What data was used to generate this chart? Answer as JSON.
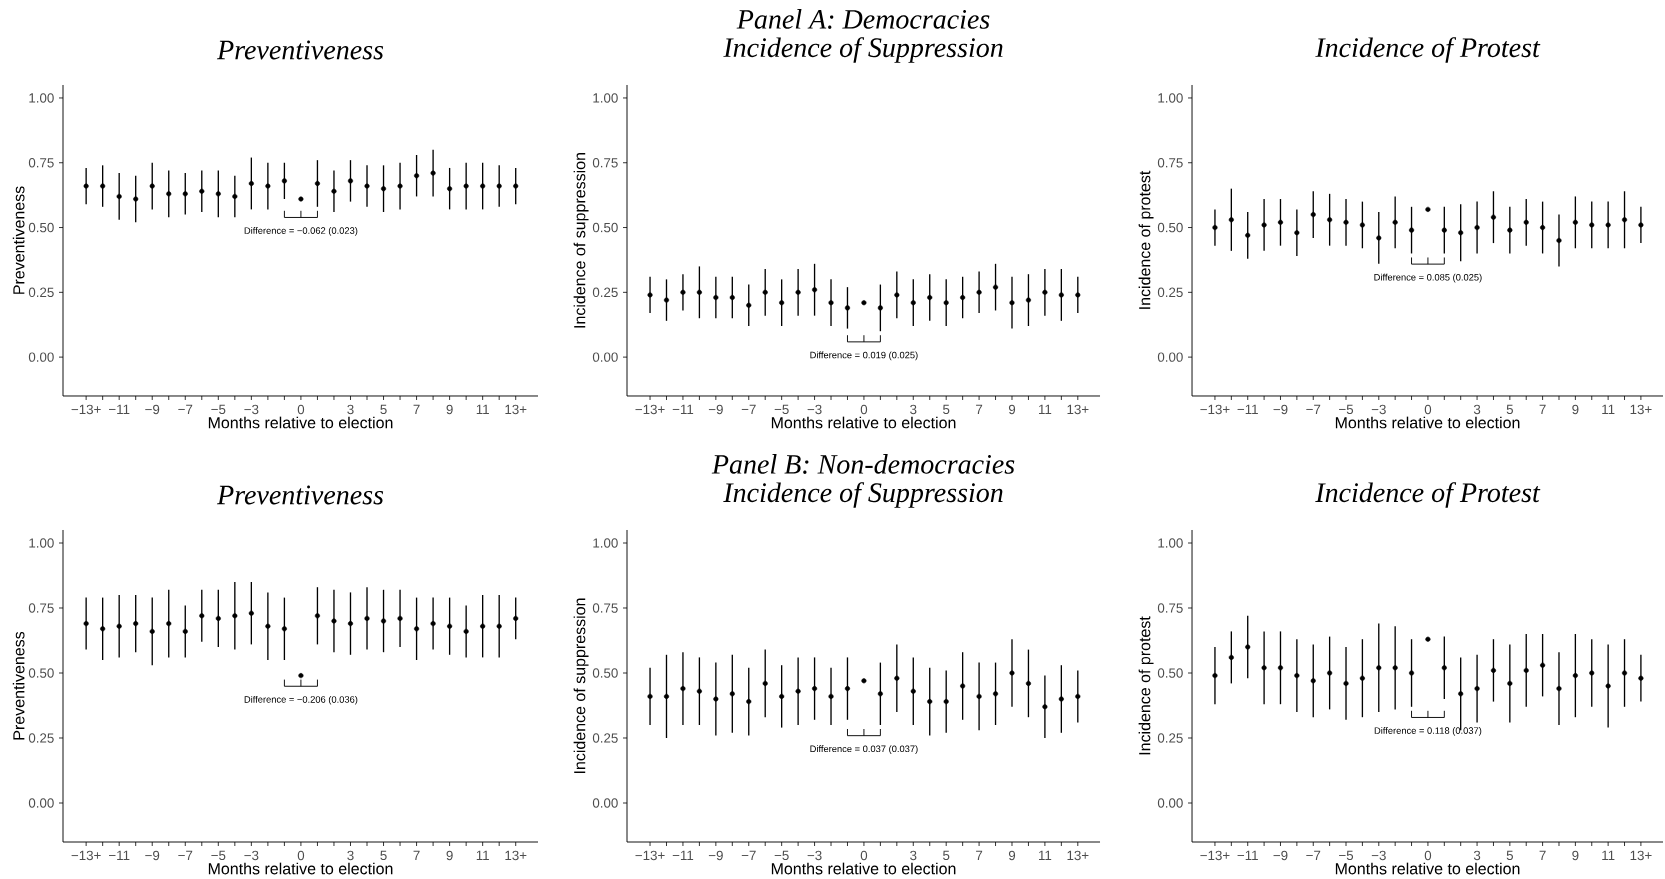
{
  "chart_data": [
    {
      "type": "scatter",
      "title": "Preventiveness",
      "xlabel": "Months relative to election",
      "ylabel": "Preventiveness",
      "marker": "circle",
      "color": "#000000",
      "categories": [
        "−13+",
        null,
        "−11",
        null,
        "−9",
        null,
        "−7",
        null,
        "−5",
        null,
        "−3",
        null,
        null,
        "0",
        null,
        null,
        "3",
        null,
        "5",
        null,
        "7",
        null,
        "9",
        null,
        "11",
        null,
        "13+"
      ],
      "values": [
        0.66,
        0.66,
        0.62,
        0.61,
        0.66,
        0.63,
        0.63,
        0.64,
        0.63,
        0.62,
        0.67,
        0.66,
        0.68,
        0.61,
        0.67,
        0.64,
        0.68,
        0.66,
        0.65,
        0.66,
        0.7,
        0.71,
        0.65,
        0.66,
        0.66,
        0.66,
        0.66
      ],
      "errors": [
        0.07,
        0.08,
        0.09,
        0.09,
        0.09,
        0.09,
        0.08,
        0.08,
        0.09,
        0.08,
        0.1,
        0.09,
        0.07,
        null,
        0.09,
        0.08,
        0.08,
        0.08,
        0.09,
        0.09,
        0.08,
        0.09,
        0.08,
        0.09,
        0.09,
        0.08,
        0.07
      ],
      "ylim": [
        -0.15,
        1.05
      ],
      "yticks": [
        {
          "value": 0,
          "label": "0.00"
        },
        {
          "value": 0.25,
          "label": "0.25"
        },
        {
          "value": 0.5,
          "label": "0.50"
        },
        {
          "value": 0.75,
          "label": "0.75"
        },
        {
          "value": 1,
          "label": "1.00"
        }
      ],
      "annotations": [
        "Difference = −0.062 (0.023)"
      ]
    },
    {
      "type": "scatter",
      "title": "Incidence of Suppression",
      "xlabel": "Months relative to election",
      "ylabel": "Incidence of suppression",
      "marker": "circle",
      "color": "#000000",
      "categories": [
        "−13+",
        null,
        "−11",
        null,
        "−9",
        null,
        "−7",
        null,
        "−5",
        null,
        "−3",
        null,
        null,
        "0",
        null,
        null,
        "3",
        null,
        "5",
        null,
        "7",
        null,
        "9",
        null,
        "11",
        null,
        "13+"
      ],
      "values": [
        0.24,
        0.22,
        0.25,
        0.25,
        0.23,
        0.23,
        0.2,
        0.25,
        0.21,
        0.25,
        0.26,
        0.21,
        0.19,
        0.21,
        0.19,
        0.24,
        0.21,
        0.23,
        0.21,
        0.23,
        0.25,
        0.27,
        0.21,
        0.22,
        0.25,
        0.24,
        0.24
      ],
      "errors": [
        0.07,
        0.08,
        0.07,
        0.1,
        0.08,
        0.08,
        0.08,
        0.09,
        0.09,
        0.09,
        0.1,
        0.09,
        0.08,
        null,
        0.09,
        0.09,
        0.09,
        0.09,
        0.09,
        0.08,
        0.08,
        0.09,
        0.1,
        0.1,
        0.09,
        0.1,
        0.07
      ],
      "ylim": [
        -0.15,
        1.05
      ],
      "yticks": [
        {
          "value": 0,
          "label": "0.00"
        },
        {
          "value": 0.25,
          "label": "0.25"
        },
        {
          "value": 0.5,
          "label": "0.50"
        },
        {
          "value": 0.75,
          "label": "0.75"
        },
        {
          "value": 1,
          "label": "1.00"
        }
      ],
      "annotations": [
        "Panel A: Democracies",
        "Difference = 0.019 (0.025)"
      ]
    },
    {
      "type": "scatter",
      "title": "Incidence of Protest",
      "xlabel": "Months relative to election",
      "ylabel": "Incidence of protest",
      "marker": "circle",
      "color": "#000000",
      "categories": [
        "−13+",
        null,
        "−11",
        null,
        "−9",
        null,
        "−7",
        null,
        "−5",
        null,
        "−3",
        null,
        null,
        "0",
        null,
        null,
        "3",
        null,
        "5",
        null,
        "7",
        null,
        "9",
        null,
        "11",
        null,
        "13+"
      ],
      "values": [
        0.5,
        0.53,
        0.47,
        0.51,
        0.52,
        0.48,
        0.55,
        0.53,
        0.52,
        0.51,
        0.46,
        0.52,
        0.49,
        0.57,
        0.49,
        0.48,
        0.5,
        0.54,
        0.49,
        0.52,
        0.5,
        0.45,
        0.52,
        0.51,
        0.51,
        0.53,
        0.51
      ],
      "errors": [
        0.07,
        0.12,
        0.09,
        0.1,
        0.09,
        0.09,
        0.09,
        0.1,
        0.09,
        0.09,
        0.1,
        0.1,
        0.09,
        null,
        0.09,
        0.11,
        0.1,
        0.1,
        0.09,
        0.09,
        0.1,
        0.1,
        0.1,
        0.09,
        0.09,
        0.11,
        0.07
      ],
      "ylim": [
        -0.15,
        1.05
      ],
      "yticks": [
        {
          "value": 0,
          "label": "0.00"
        },
        {
          "value": 0.25,
          "label": "0.25"
        },
        {
          "value": 0.5,
          "label": "0.50"
        },
        {
          "value": 0.75,
          "label": "0.75"
        },
        {
          "value": 1,
          "label": "1.00"
        }
      ],
      "annotations": [
        "Difference = 0.085 (0.025)"
      ]
    },
    {
      "type": "scatter",
      "title": "Preventiveness",
      "xlabel": "Months relative to election",
      "ylabel": "Preventiveness",
      "marker": "circle",
      "color": "#000000",
      "categories": [
        "−13+",
        null,
        "−11",
        null,
        "−9",
        null,
        "−7",
        null,
        "−5",
        null,
        "−3",
        null,
        null,
        "0",
        null,
        null,
        "3",
        null,
        "5",
        null,
        "7",
        null,
        "9",
        null,
        "11",
        null,
        "13+"
      ],
      "values": [
        0.69,
        0.67,
        0.68,
        0.69,
        0.66,
        0.69,
        0.66,
        0.72,
        0.71,
        0.72,
        0.73,
        0.68,
        0.67,
        0.49,
        0.72,
        0.7,
        0.69,
        0.71,
        0.7,
        0.71,
        0.67,
        0.69,
        0.68,
        0.66,
        0.68,
        0.68,
        0.71
      ],
      "errors": [
        0.1,
        0.12,
        0.12,
        0.11,
        0.13,
        0.13,
        0.1,
        0.1,
        0.11,
        0.13,
        0.12,
        0.13,
        0.12,
        null,
        0.11,
        0.12,
        0.12,
        0.12,
        0.12,
        0.11,
        0.12,
        0.1,
        0.11,
        0.1,
        0.12,
        0.12,
        0.08
      ],
      "ylim": [
        -0.15,
        1.05
      ],
      "yticks": [
        {
          "value": 0,
          "label": "0.00"
        },
        {
          "value": 0.25,
          "label": "0.25"
        },
        {
          "value": 0.5,
          "label": "0.50"
        },
        {
          "value": 0.75,
          "label": "0.75"
        },
        {
          "value": 1,
          "label": "1.00"
        }
      ],
      "annotations": [
        "Difference = −0.206 (0.036)"
      ]
    },
    {
      "type": "scatter",
      "title": "Incidence of Suppression",
      "xlabel": "Months relative to election",
      "ylabel": "Incidence of suppression",
      "marker": "circle",
      "color": "#000000",
      "categories": [
        "−13+",
        null,
        "−11",
        null,
        "−9",
        null,
        "−7",
        null,
        "−5",
        null,
        "−3",
        null,
        null,
        "0",
        null,
        null,
        "3",
        null,
        "5",
        null,
        "7",
        null,
        "9",
        null,
        "11",
        null,
        "13+"
      ],
      "values": [
        0.41,
        0.41,
        0.44,
        0.43,
        0.4,
        0.42,
        0.39,
        0.46,
        0.41,
        0.43,
        0.44,
        0.41,
        0.44,
        0.47,
        0.42,
        0.48,
        0.43,
        0.39,
        0.39,
        0.45,
        0.41,
        0.42,
        0.5,
        0.46,
        0.37,
        0.4,
        0.41
      ],
      "errors": [
        0.11,
        0.16,
        0.14,
        0.13,
        0.14,
        0.15,
        0.13,
        0.13,
        0.12,
        0.13,
        0.12,
        0.11,
        0.12,
        null,
        0.12,
        0.13,
        0.13,
        0.13,
        0.12,
        0.13,
        0.13,
        0.12,
        0.13,
        0.13,
        0.12,
        0.13,
        0.1
      ],
      "ylim": [
        -0.15,
        1.05
      ],
      "yticks": [
        {
          "value": 0,
          "label": "0.00"
        },
        {
          "value": 0.25,
          "label": "0.25"
        },
        {
          "value": 0.5,
          "label": "0.50"
        },
        {
          "value": 0.75,
          "label": "0.75"
        },
        {
          "value": 1,
          "label": "1.00"
        }
      ],
      "annotations": [
        "Panel B: Non-democracies",
        "Difference = 0.037 (0.037)"
      ]
    },
    {
      "type": "scatter",
      "title": "Incidence of Protest",
      "xlabel": "Months relative to election",
      "ylabel": "Incidence of protest",
      "marker": "circle",
      "color": "#000000",
      "categories": [
        "−13+",
        null,
        "−11",
        null,
        "−9",
        null,
        "−7",
        null,
        "−5",
        null,
        "−3",
        null,
        null,
        "0",
        null,
        null,
        "3",
        null,
        "5",
        null,
        "7",
        null,
        "9",
        null,
        "11",
        null,
        "13+"
      ],
      "values": [
        0.49,
        0.56,
        0.6,
        0.52,
        0.52,
        0.49,
        0.47,
        0.5,
        0.46,
        0.48,
        0.52,
        0.52,
        0.5,
        0.63,
        0.52,
        0.42,
        0.44,
        0.51,
        0.46,
        0.51,
        0.53,
        0.44,
        0.49,
        0.5,
        0.45,
        0.5,
        0.48
      ],
      "errors": [
        0.11,
        0.1,
        0.12,
        0.14,
        0.14,
        0.14,
        0.14,
        0.14,
        0.14,
        0.15,
        0.17,
        0.16,
        0.13,
        null,
        0.12,
        0.14,
        0.13,
        0.12,
        0.15,
        0.14,
        0.12,
        0.14,
        0.16,
        0.13,
        0.16,
        0.13,
        0.09
      ],
      "ylim": [
        -0.15,
        1.05
      ],
      "yticks": [
        {
          "value": 0,
          "label": "0.00"
        },
        {
          "value": 0.25,
          "label": "0.25"
        },
        {
          "value": 0.5,
          "label": "0.50"
        },
        {
          "value": 0.75,
          "label": "0.75"
        },
        {
          "value": 1,
          "label": "1.00"
        }
      ],
      "annotations": [
        "Difference = 0.118 (0.037)"
      ]
    }
  ]
}
